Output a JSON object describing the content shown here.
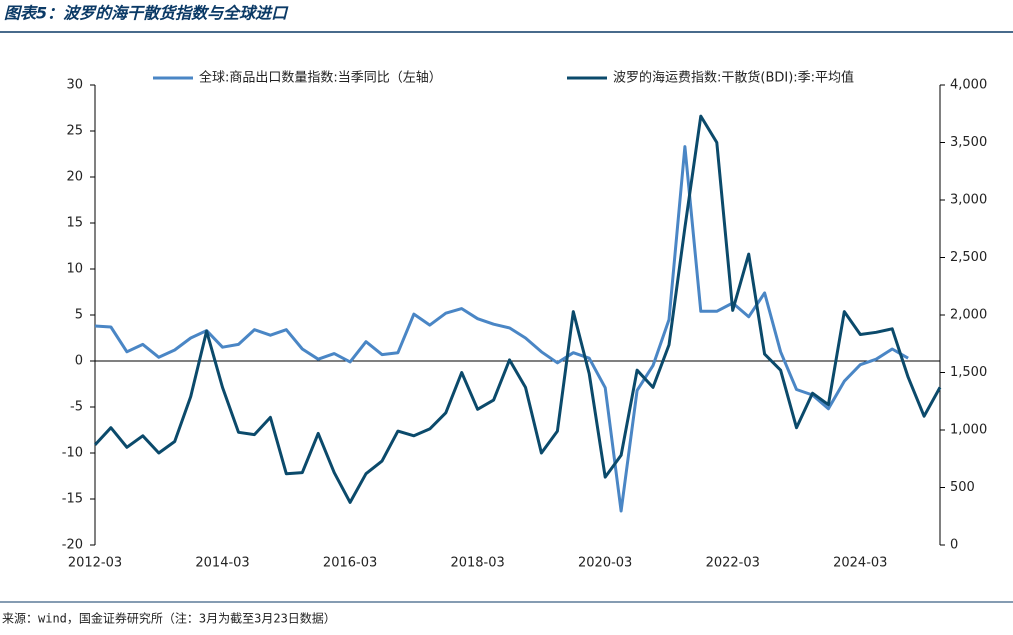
{
  "title": "图表5：波罗的海干散货指数与全球进口",
  "source": "来源：wind，国金证券研究所（注：3月为截至3月23日数据）",
  "chart_data": {
    "type": "line",
    "categories": [
      "2012-03",
      null,
      null,
      null,
      null,
      null,
      null,
      null,
      "2014-03",
      null,
      null,
      null,
      null,
      null,
      null,
      null,
      "2016-03",
      null,
      null,
      null,
      null,
      null,
      null,
      null,
      "2018-03",
      null,
      null,
      null,
      null,
      null,
      null,
      null,
      "2020-03",
      null,
      null,
      null,
      null,
      null,
      null,
      null,
      "2022-03",
      null,
      null,
      null,
      null,
      null,
      null,
      null,
      "2024-03",
      null,
      null,
      null,
      null,
      null
    ],
    "series": [
      {
        "name": "全球:商品出口数量指数:当季同比（左轴）",
        "color": "#4a86c5",
        "axis": "y",
        "values": [
          3.8,
          3.7,
          1.0,
          1.8,
          0.4,
          1.2,
          2.5,
          3.3,
          1.5,
          1.8,
          3.4,
          2.8,
          3.4,
          1.3,
          0.2,
          0.8,
          -0.1,
          2.1,
          0.7,
          0.9,
          5.1,
          3.9,
          5.2,
          5.7,
          4.6,
          4.0,
          3.6,
          2.5,
          1.0,
          -0.2,
          0.9,
          0.3,
          -2.9,
          -16.3,
          -3.2,
          -0.5,
          4.5,
          23.3,
          5.4,
          5.4,
          6.3,
          4.8,
          7.4,
          1.0,
          -3.1,
          -3.7,
          -5.2,
          -2.2,
          -0.4,
          0.2,
          1.3,
          0.3,
          null,
          null
        ]
      },
      {
        "name": "波罗的海运费指数:干散货(BDI):季:平均值",
        "color": "#0b4a6b",
        "axis": "y2",
        "values": [
          870,
          1020,
          850,
          950,
          800,
          900,
          1290,
          1860,
          1370,
          980,
          960,
          1110,
          620,
          630,
          970,
          630,
          370,
          620,
          730,
          990,
          950,
          1010,
          1150,
          1500,
          1180,
          1260,
          1610,
          1370,
          800,
          990,
          2030,
          1490,
          590,
          780,
          1520,
          1370,
          1740,
          2760,
          3730,
          3500,
          2040,
          2530,
          1660,
          1520,
          1020,
          1320,
          1220,
          2030,
          1830,
          1850,
          1880,
          1460,
          1120,
          1370
        ]
      }
    ],
    "ylim": [
      -20,
      30
    ],
    "yticks": [
      -20,
      -15,
      -10,
      -5,
      0,
      5,
      10,
      15,
      20,
      25,
      30
    ],
    "y2lim": [
      0,
      4000
    ],
    "y2ticks": [
      0,
      500,
      {
        "value": 1000,
        "label": "1,000"
      },
      {
        "value": 1500,
        "label": "1,500"
      },
      {
        "value": 2000,
        "label": "2,000"
      },
      {
        "value": 2500,
        "label": "2,500"
      },
      {
        "value": 3000,
        "label": "3,000"
      },
      {
        "value": 3500,
        "label": "3,500"
      },
      {
        "value": 4000,
        "label": "4,000"
      }
    ]
  }
}
